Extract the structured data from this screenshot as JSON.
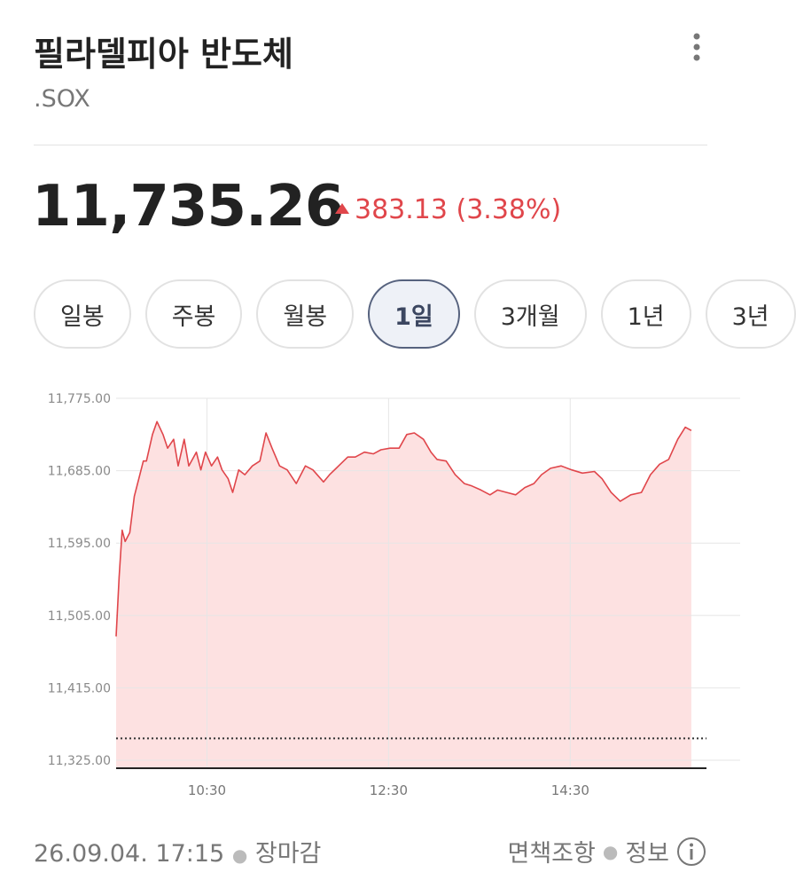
{
  "header": {
    "title": "필라델피아 반도체",
    "symbol": ".SOX"
  },
  "quote": {
    "price": "11,735.26",
    "change": "383.13 (3.38%)"
  },
  "tabs": [
    "일봉",
    "주봉",
    "월봉",
    "1일",
    "3개월",
    "1년",
    "3년"
  ],
  "selected_tab": 3,
  "chart_data": {
    "type": "line",
    "x": [
      570,
      572,
      574,
      576,
      579,
      582,
      585,
      588,
      590,
      594,
      597,
      601,
      604,
      608,
      611,
      615,
      618,
      623,
      626,
      629,
      633,
      637,
      640,
      644,
      647,
      651,
      655,
      660,
      665,
      669,
      673,
      678,
      683,
      689,
      695,
      700,
      707,
      711,
      717,
      723,
      728,
      734,
      740,
      745,
      751,
      757,
      762,
      767,
      773,
      778,
      782,
      788,
      794,
      800,
      805,
      811,
      817,
      822,
      828,
      834,
      840,
      846,
      851,
      857,
      864,
      871,
      878,
      886,
      891,
      897,
      903,
      910,
      917,
      923,
      929,
      935,
      941,
      946,
      950
    ],
    "values": [
      11479,
      11553,
      11611,
      11597,
      11608,
      11653,
      11675,
      11697,
      11697,
      11730,
      11746,
      11730,
      11713,
      11724,
      11691,
      11724,
      11691,
      11708,
      11686,
      11708,
      11691,
      11702,
      11686,
      11675,
      11658,
      11686,
      11680,
      11691,
      11697,
      11732,
      11713,
      11691,
      11686,
      11669,
      11691,
      11686,
      11671,
      11680,
      11691,
      11702,
      11702,
      11708,
      11706,
      11711,
      11713,
      11713,
      11730,
      11732,
      11724,
      11708,
      11699,
      11697,
      11680,
      11669,
      11666,
      11661,
      11655,
      11661,
      11658,
      11655,
      11664,
      11669,
      11680,
      11688,
      11691,
      11686,
      11682,
      11684,
      11675,
      11658,
      11647,
      11655,
      11658,
      11680,
      11693,
      11699,
      11724,
      11739,
      11735
    ],
    "color": "#e0464b",
    "fill_color": "#fde1e1",
    "reference_line": 11352.13,
    "xlim": [
      570,
      960
    ],
    "xticks": [
      {
        "value": 630,
        "label": "10:30"
      },
      {
        "value": 750,
        "label": "12:30"
      },
      {
        "value": 870,
        "label": "14:30"
      }
    ],
    "ylim": [
      11325,
      11775
    ],
    "yticks": [
      {
        "value": 11325,
        "label": "11,325.00"
      },
      {
        "value": 11415,
        "label": "11,415.00"
      },
      {
        "value": 11505,
        "label": "11,505.00"
      },
      {
        "value": 11595,
        "label": "11,595.00"
      },
      {
        "value": 11685,
        "label": "11,685.00"
      },
      {
        "value": 11775,
        "label": "11,775.00"
      }
    ],
    "grid": true
  },
  "footer": {
    "timestamp": "26.09.04. 17:15",
    "status": "장마감",
    "links": [
      "면책조항",
      "정보"
    ]
  }
}
